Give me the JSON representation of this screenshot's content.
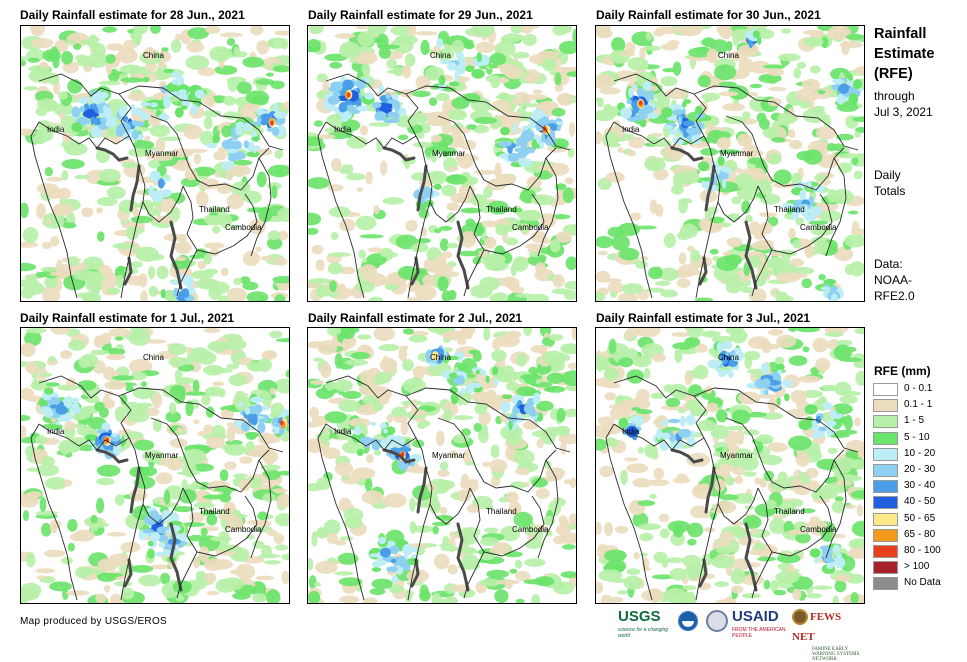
{
  "panels": [
    {
      "title": "Daily Rainfall estimate for 28 Jun., 2021",
      "labels": {
        "china": "China",
        "india": "India",
        "myanmar": "Myanmar",
        "thailand": "Thailand",
        "cambodia": "Cambodia"
      }
    },
    {
      "title": "Daily Rainfall estimate for 29 Jun., 2021",
      "labels": {
        "china": "China",
        "india": "India",
        "myanmar": "Myanmar",
        "thailand": "Thailand",
        "cambodia": "Cambodia"
      }
    },
    {
      "title": "Daily Rainfall estimate for 30 Jun., 2021",
      "labels": {
        "china": "China",
        "india": "India",
        "myanmar": "Myanmar",
        "thailand": "Thailand",
        "cambodia": "Cambodia"
      }
    },
    {
      "title": "Daily Rainfall estimate for 1 Jul., 2021",
      "labels": {
        "china": "China",
        "india": "India",
        "myanmar": "Myanmar",
        "thailand": "Thailand",
        "cambodia": "Cambodia"
      }
    },
    {
      "title": "Daily Rainfall estimate for 2 Jul., 2021",
      "labels": {
        "china": "China",
        "india": "India",
        "myanmar": "Myanmar",
        "thailand": "Thailand",
        "cambodia": "Cambodia"
      }
    },
    {
      "title": "Daily Rainfall estimate for 3 Jul., 2021",
      "labels": {
        "china": "China",
        "india": "India",
        "myanmar": "Myanmar",
        "thailand": "Thailand",
        "cambodia": "Cambodia"
      }
    }
  ],
  "sidebar": {
    "title_line1": "Rainfall",
    "title_line2": "Estimate",
    "title_line3": "(RFE)",
    "through_line1": "through",
    "through_line2": "Jul 3, 2021",
    "daily_line1": "Daily",
    "daily_line2": "Totals",
    "data_line1": "Data:",
    "data_line2": "NOAA-",
    "data_line3": "RFE2.0"
  },
  "legend": {
    "title": "RFE (mm)",
    "items": [
      {
        "label": "0 - 0.1",
        "color": "#ffffff"
      },
      {
        "label": "0.1 - 1",
        "color": "#ecdcbe"
      },
      {
        "label": "1 - 5",
        "color": "#b7f0a8"
      },
      {
        "label": "5 - 10",
        "color": "#6be46b"
      },
      {
        "label": "10 - 20",
        "color": "#bdeef6"
      },
      {
        "label": "20 - 30",
        "color": "#8ed0f2"
      },
      {
        "label": "30 - 40",
        "color": "#4a9ee8"
      },
      {
        "label": "40 - 50",
        "color": "#1f5fe0"
      },
      {
        "label": "50 - 65",
        "color": "#fde98a"
      },
      {
        "label": "65 - 80",
        "color": "#f39a1c"
      },
      {
        "label": "80 - 100",
        "color": "#e8401c"
      },
      {
        "label": "> 100",
        "color": "#a8222a"
      },
      {
        "label": "No Data",
        "color": "#8c8c8c"
      }
    ]
  },
  "footer": {
    "credit": "Map produced by USGS/EROS",
    "logos": {
      "usgs": "USGS",
      "usgs_tagline": "science for a changing world",
      "usaid": "USAID",
      "usaid_tagline": "FROM THE AMERICAN PEOPLE",
      "fews": "FEWS NET",
      "fews_tagline": "FAMINE EARLY WARNING SYSTEMS NETWORK"
    }
  },
  "map_icons": {
    "noaa": "noaa-logo-icon",
    "dos": "state-department-seal-icon",
    "fews": "fews-globe-icon"
  }
}
